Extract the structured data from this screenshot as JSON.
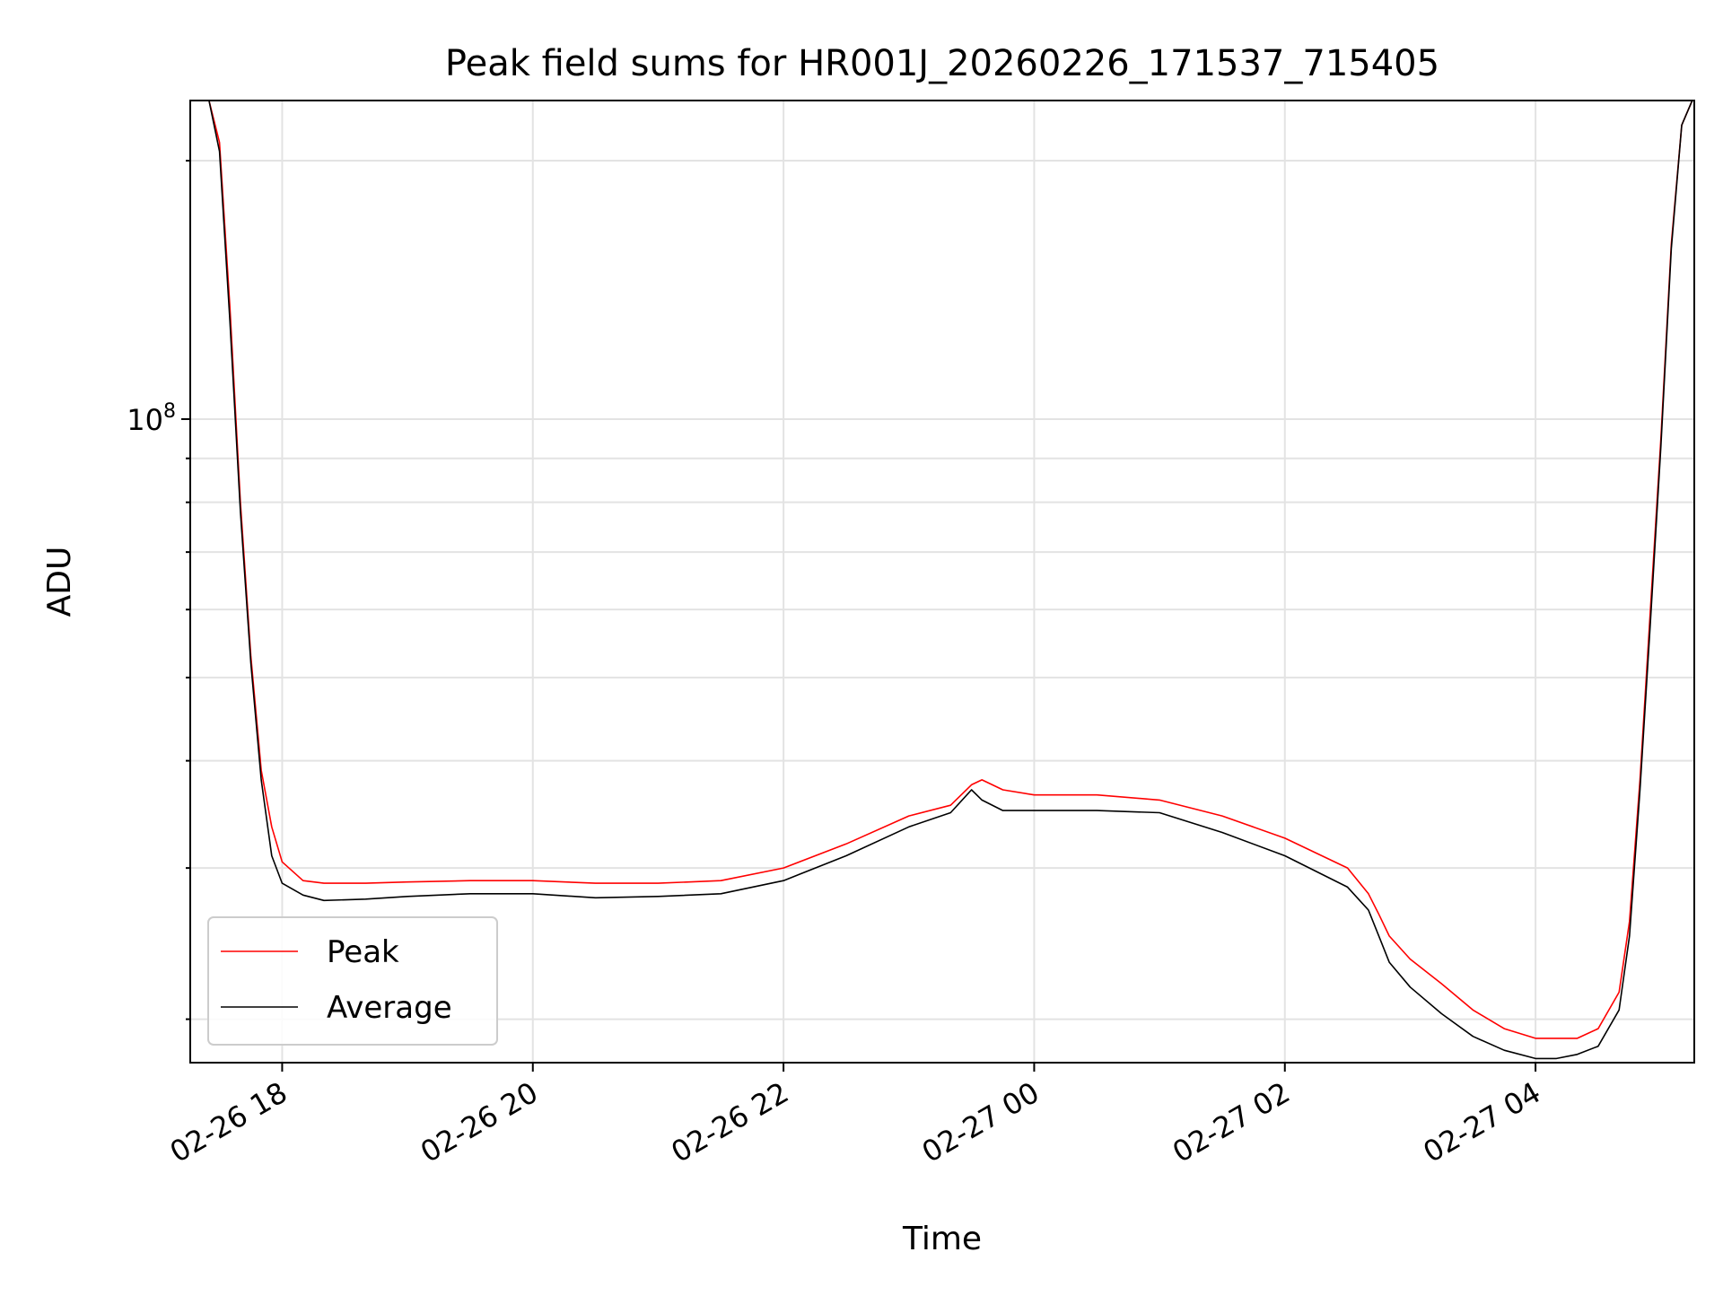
{
  "chart_data": {
    "type": "line",
    "title": "Peak field sums for HR001J_20260226_171537_715405",
    "xlabel": "Time",
    "ylabel": "ADU",
    "y_scale": "log",
    "ylim": [
      17800000,
      235000000
    ],
    "xlim": [
      "2026-02-26 17:16",
      "2026-02-27 05:16"
    ],
    "x_ticks": [
      {
        "value": "2026-02-26 18:00",
        "label": "02-26 18"
      },
      {
        "value": "2026-02-26 20:00",
        "label": "02-26 20"
      },
      {
        "value": "2026-02-26 22:00",
        "label": "02-26 22"
      },
      {
        "value": "2026-02-27 00:00",
        "label": "02-27 00"
      },
      {
        "value": "2026-02-27 02:00",
        "label": "02-27 02"
      },
      {
        "value": "2026-02-27 04:00",
        "label": "02-27 04"
      }
    ],
    "y_major_ticks": [
      {
        "value": 100000000,
        "label_base": "10",
        "label_exp": "8"
      }
    ],
    "grid": true,
    "legend_position": "lower-left",
    "series": [
      {
        "name": "Peak",
        "color": "#ff0000",
        "x": [
          "2026-02-26 17:25",
          "2026-02-26 17:30",
          "2026-02-26 17:35",
          "2026-02-26 17:40",
          "2026-02-26 17:45",
          "2026-02-26 17:50",
          "2026-02-26 17:55",
          "2026-02-26 18:00",
          "2026-02-26 18:10",
          "2026-02-26 18:20",
          "2026-02-26 18:40",
          "2026-02-26 19:00",
          "2026-02-26 19:30",
          "2026-02-26 20:00",
          "2026-02-26 20:30",
          "2026-02-26 21:00",
          "2026-02-26 21:30",
          "2026-02-26 22:00",
          "2026-02-26 22:30",
          "2026-02-26 23:00",
          "2026-02-26 23:20",
          "2026-02-26 23:30",
          "2026-02-26 23:35",
          "2026-02-26 23:45",
          "2026-02-27 00:00",
          "2026-02-27 00:30",
          "2026-02-27 01:00",
          "2026-02-27 01:30",
          "2026-02-27 02:00",
          "2026-02-27 02:30",
          "2026-02-27 02:40",
          "2026-02-27 02:45",
          "2026-02-27 02:50",
          "2026-02-27 03:00",
          "2026-02-27 03:15",
          "2026-02-27 03:30",
          "2026-02-27 03:45",
          "2026-02-27 04:00",
          "2026-02-27 04:10",
          "2026-02-27 04:20",
          "2026-02-27 04:30",
          "2026-02-27 04:40",
          "2026-02-27 04:45",
          "2026-02-27 04:50",
          "2026-02-27 04:55",
          "2026-02-27 05:00",
          "2026-02-27 05:05",
          "2026-02-27 05:10",
          "2026-02-27 05:15"
        ],
        "y": [
          235000000,
          210000000,
          135000000,
          80000000,
          53000000,
          39000000,
          33500000,
          30500000,
          29000000,
          28800000,
          28800000,
          28900000,
          29000000,
          29000000,
          28800000,
          28800000,
          29000000,
          30000000,
          32000000,
          34500000,
          35500000,
          37500000,
          38000000,
          37000000,
          36500000,
          36500000,
          36000000,
          34500000,
          32500000,
          30000000,
          28000000,
          26500000,
          25000000,
          23500000,
          22000000,
          20500000,
          19500000,
          19000000,
          19000000,
          19000000,
          19500000,
          21500000,
          26000000,
          38000000,
          60000000,
          95000000,
          160000000,
          220000000,
          235000000
        ]
      },
      {
        "name": "Average",
        "color": "#000000",
        "x": [
          "2026-02-26 17:25",
          "2026-02-26 17:30",
          "2026-02-26 17:35",
          "2026-02-26 17:40",
          "2026-02-26 17:45",
          "2026-02-26 17:50",
          "2026-02-26 17:55",
          "2026-02-26 18:00",
          "2026-02-26 18:10",
          "2026-02-26 18:20",
          "2026-02-26 18:40",
          "2026-02-26 19:00",
          "2026-02-26 19:30",
          "2026-02-26 20:00",
          "2026-02-26 20:30",
          "2026-02-26 21:00",
          "2026-02-26 21:30",
          "2026-02-26 22:00",
          "2026-02-26 22:30",
          "2026-02-26 23:00",
          "2026-02-26 23:20",
          "2026-02-26 23:30",
          "2026-02-26 23:35",
          "2026-02-26 23:45",
          "2026-02-27 00:00",
          "2026-02-27 00:30",
          "2026-02-27 01:00",
          "2026-02-27 01:30",
          "2026-02-27 02:00",
          "2026-02-27 02:30",
          "2026-02-27 02:40",
          "2026-02-27 02:45",
          "2026-02-27 02:50",
          "2026-02-27 03:00",
          "2026-02-27 03:15",
          "2026-02-27 03:30",
          "2026-02-27 03:45",
          "2026-02-27 04:00",
          "2026-02-27 04:10",
          "2026-02-27 04:20",
          "2026-02-27 04:30",
          "2026-02-27 04:40",
          "2026-02-27 04:45",
          "2026-02-27 04:50",
          "2026-02-27 04:55",
          "2026-02-27 05:00",
          "2026-02-27 05:05",
          "2026-02-27 05:10",
          "2026-02-27 05:15"
        ],
        "y": [
          235000000,
          205000000,
          130000000,
          78000000,
          52000000,
          38000000,
          31000000,
          28800000,
          27900000,
          27500000,
          27600000,
          27800000,
          28000000,
          28000000,
          27700000,
          27800000,
          28000000,
          29000000,
          31000000,
          33500000,
          34800000,
          37000000,
          36000000,
          35000000,
          35000000,
          35000000,
          34800000,
          33000000,
          31000000,
          28500000,
          26800000,
          25000000,
          23300000,
          21800000,
          20300000,
          19100000,
          18400000,
          18000000,
          18000000,
          18200000,
          18600000,
          20500000,
          25000000,
          37000000,
          58000000,
          93000000,
          158000000,
          220000000,
          235000000
        ]
      }
    ]
  }
}
